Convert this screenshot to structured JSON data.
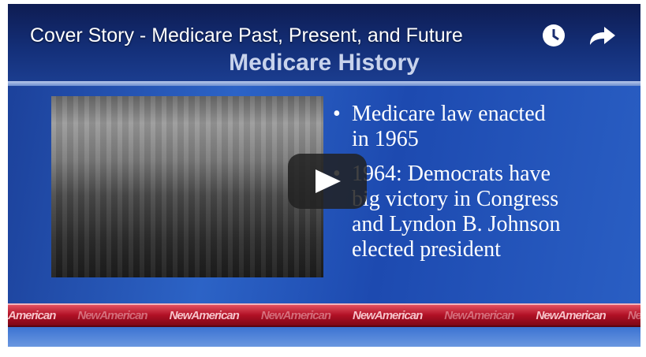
{
  "video": {
    "title": "Cover Story - Medicare Past, Present, and Future"
  },
  "slide": {
    "title": "Medicare History",
    "bullets": [
      [
        "Medicare law enacted",
        "in 1965"
      ],
      [
        "1964: Democrats have",
        "big victory in Congress",
        "and Lyndon B. Johnson",
        "elected president"
      ]
    ]
  },
  "banner": [
    "American",
    "NewAmerican",
    "NewAmerican",
    "NewAmerican",
    "NewAmerican",
    "NewAmerican",
    "NewAmerican",
    "NewAmerican"
  ]
}
